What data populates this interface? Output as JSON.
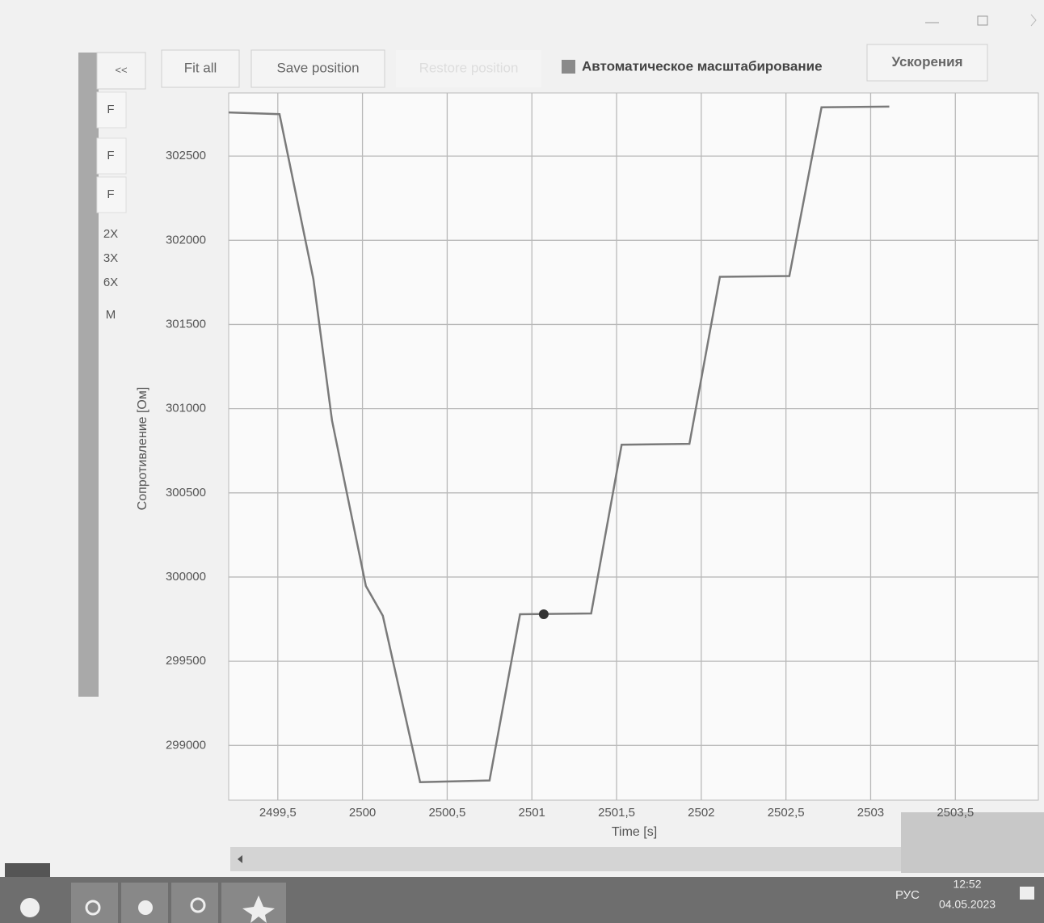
{
  "toolbar": {
    "buttons": [
      "<<",
      "Fit all",
      "Save position",
      "Restore position",
      "Ускорения"
    ],
    "checkbox": "Автоматическое масштабирование"
  },
  "side_buttons": [
    "F",
    "F",
    "F",
    "2X",
    "3X",
    "6X",
    "M"
  ],
  "chart_data": {
    "type": "line",
    "x_label": "Time [s]",
    "y_label": "Сопротивление [Ом]",
    "xlim": [
      2499.21,
      2503.99
    ],
    "ylim": [
      298675,
      302875
    ],
    "xticks": [
      {
        "value": 2499.5,
        "label": "2499,5"
      },
      2500,
      {
        "value": 2500.5,
        "label": "2500,5"
      },
      2501,
      {
        "value": 2501.5,
        "label": "2501,5"
      },
      2502,
      {
        "value": 2502.5,
        "label": "2502,5"
      },
      2503,
      {
        "value": 2503.5,
        "label": "2503,5"
      }
    ],
    "yticks": [
      299000,
      299500,
      300000,
      300500,
      301000,
      301500,
      302000,
      302500
    ],
    "grid": true,
    "series": [
      {
        "color": "#7a7a7a",
        "x": [
          2499.21,
          2499.51,
          2499.71,
          2499.82,
          2500.02,
          2500.12,
          2500.34,
          2500.75,
          2500.93,
          2501.35,
          2501.53,
          2501.93,
          2502.11,
          2502.52,
          2502.71,
          2503.11
        ],
        "values": [
          302759,
          302749,
          301770,
          300930,
          299947,
          299770,
          298782,
          298792,
          299779,
          299784,
          300786,
          300791,
          301783,
          301788,
          302790,
          302794
        ]
      }
    ],
    "cursor": {
      "x": 2501.07,
      "y": 299779
    }
  },
  "taskbar": {
    "language": "РУС",
    "time": "12:52",
    "date": "04.05.2023"
  }
}
